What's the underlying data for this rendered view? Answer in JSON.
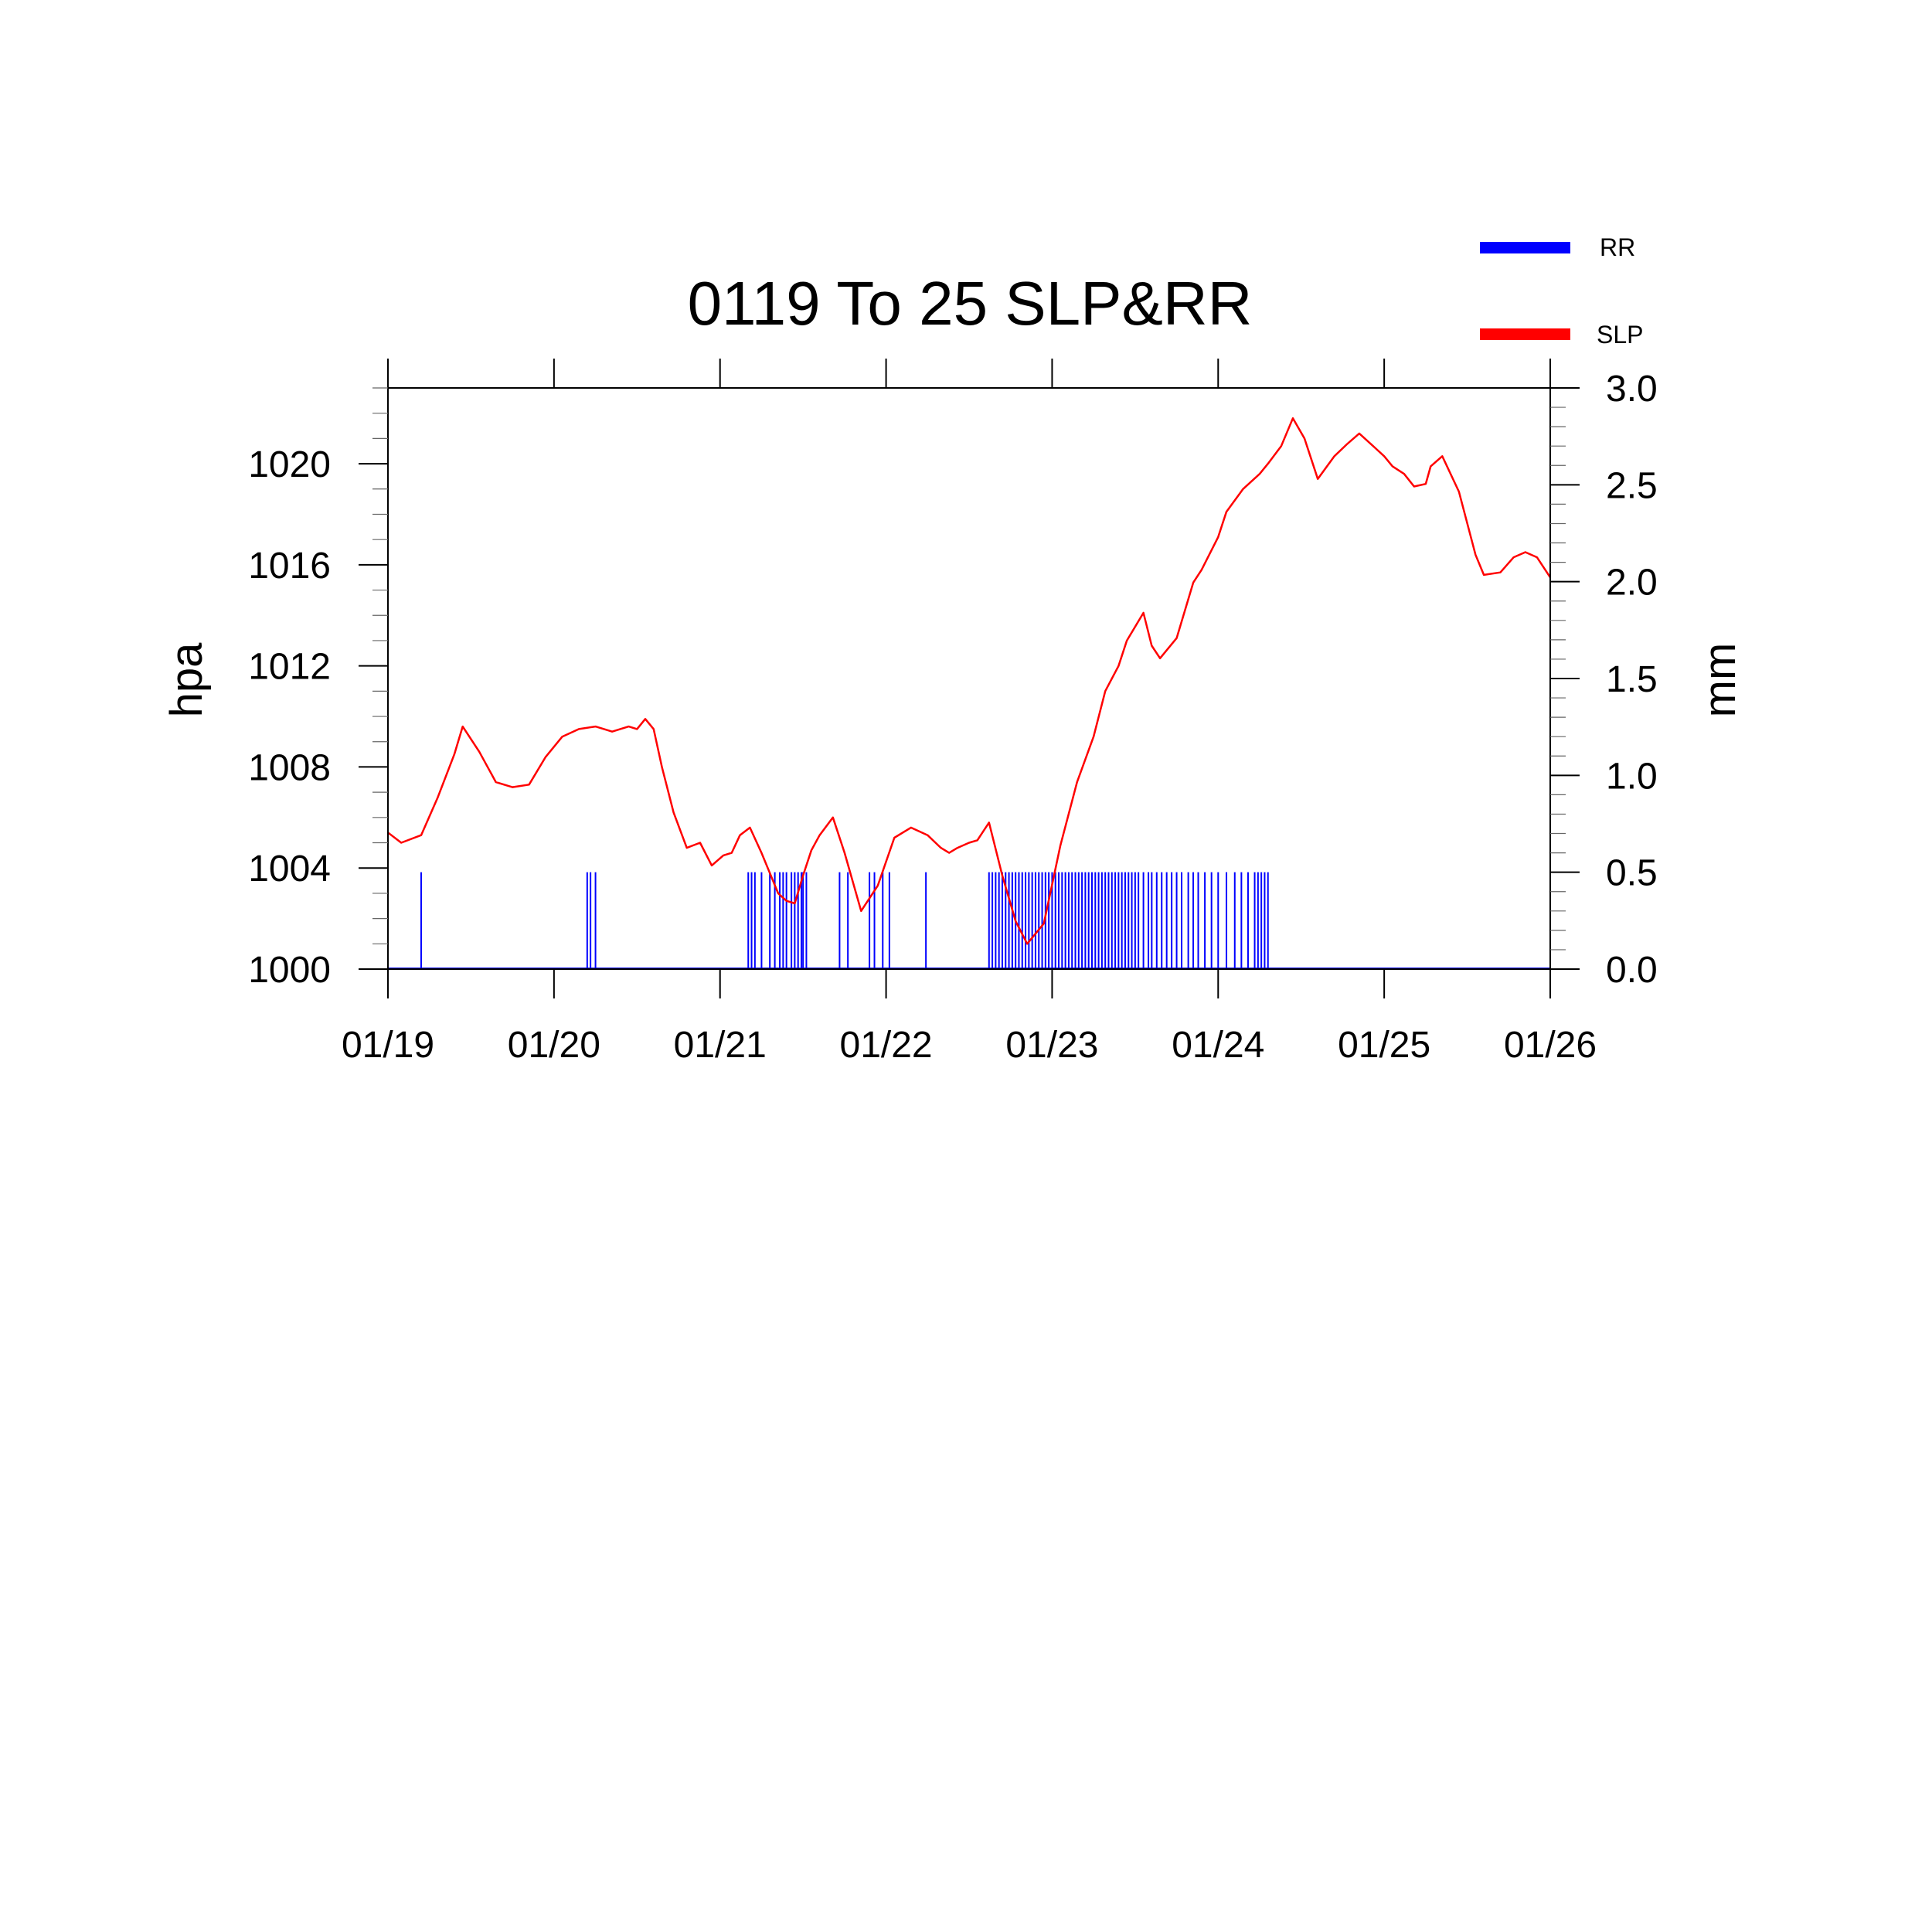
{
  "chart_data": {
    "type": "line",
    "title": "0119 To 25 SLP&RR",
    "xlabel": "",
    "ylabel_left": "hpa",
    "ylabel_right": "mm",
    "x_ticks": [
      "01/19",
      "01/20",
      "01/21",
      "01/22",
      "01/23",
      "01/24",
      "01/25",
      "01/26"
    ],
    "x_range_days": [
      0,
      7
    ],
    "y_left_range": [
      1000,
      1023
    ],
    "y_left_ticks": [
      "1000",
      "1004",
      "1008",
      "1012",
      "1016",
      "1020"
    ],
    "y_right_range": [
      0,
      3
    ],
    "y_right_ticks": [
      "0.0",
      "0.5",
      "1.0",
      "1.5",
      "2.0",
      "2.5",
      "3.0"
    ],
    "legend": {
      "position": "top-right",
      "entries": [
        {
          "name": "RR",
          "color": "#0000ff"
        },
        {
          "name": "SLP",
          "color": "#ff0000"
        }
      ]
    },
    "series": [
      {
        "name": "SLP",
        "axis": "left",
        "style": "line",
        "color": "#ff0000",
        "x": [
          0,
          0.08,
          0.2,
          0.3,
          0.4,
          0.45,
          0.55,
          0.65,
          0.75,
          0.85,
          0.95,
          1.05,
          1.15,
          1.25,
          1.35,
          1.45,
          1.5,
          1.55,
          1.6,
          1.65,
          1.72,
          1.8,
          1.88,
          1.95,
          2.02,
          2.07,
          2.12,
          2.18,
          2.25,
          2.3,
          2.35,
          2.4,
          2.45,
          2.5,
          2.55,
          2.6,
          2.68,
          2.75,
          2.85,
          2.95,
          3.05,
          3.15,
          3.25,
          3.33,
          3.38,
          3.43,
          3.5,
          3.55,
          3.62,
          3.7,
          3.78,
          3.85,
          3.95,
          4.05,
          4.15,
          4.25,
          4.32,
          4.4,
          4.45,
          4.55,
          4.6,
          4.65,
          4.75,
          4.85,
          4.9,
          5.0,
          5.05,
          5.15,
          5.25,
          5.3,
          5.38,
          5.45,
          5.52,
          5.6,
          5.7,
          5.78,
          5.85,
          5.95,
          6.0,
          6.05,
          6.12,
          6.18,
          6.25,
          6.28,
          6.35,
          6.45,
          6.55,
          6.6,
          6.7,
          6.78,
          6.85,
          6.92,
          7.0
        ],
        "y": [
          1005.4,
          1005.0,
          1005.3,
          1006.8,
          1008.5,
          1009.6,
          1008.6,
          1007.4,
          1007.2,
          1007.3,
          1008.4,
          1009.2,
          1009.5,
          1009.6,
          1009.4,
          1009.6,
          1009.5,
          1009.9,
          1009.5,
          1008.0,
          1006.2,
          1004.8,
          1005.0,
          1004.1,
          1004.5,
          1004.6,
          1005.3,
          1005.6,
          1004.6,
          1003.8,
          1003.0,
          1002.7,
          1002.6,
          1003.7,
          1004.7,
          1005.3,
          1006.0,
          1004.6,
          1002.3,
          1003.3,
          1005.2,
          1005.6,
          1005.3,
          1004.8,
          1004.6,
          1004.8,
          1005.0,
          1005.1,
          1005.8,
          1003.7,
          1001.9,
          1001.0,
          1001.8,
          1004.9,
          1007.4,
          1009.2,
          1011.0,
          1012.0,
          1013.0,
          1014.1,
          1012.8,
          1012.3,
          1013.1,
          1015.3,
          1015.8,
          1017.1,
          1018.1,
          1019.0,
          1019.6,
          1020.0,
          1020.7,
          1021.8,
          1021.0,
          1019.4,
          1020.3,
          1020.8,
          1021.2,
          1020.6,
          1020.3,
          1019.9,
          1019.6,
          1019.1,
          1019.2,
          1019.9,
          1020.3,
          1018.9,
          1016.4,
          1015.6,
          1015.7,
          1016.3,
          1016.5,
          1016.3,
          1015.5
        ]
      },
      {
        "name": "RR",
        "axis": "right",
        "style": "impulse",
        "color": "#0000ff",
        "x": [
          0.2,
          1.2,
          1.22,
          1.25,
          2.17,
          2.19,
          2.21,
          2.25,
          2.3,
          2.33,
          2.36,
          2.38,
          2.4,
          2.43,
          2.45,
          2.47,
          2.49,
          2.5,
          2.52,
          2.72,
          2.77,
          2.9,
          2.93,
          2.98,
          3.02,
          3.24,
          3.62,
          3.64,
          3.66,
          3.68,
          3.7,
          3.72,
          3.74,
          3.76,
          3.78,
          3.8,
          3.82,
          3.84,
          3.86,
          3.88,
          3.9,
          3.92,
          3.94,
          3.96,
          3.98,
          4.0,
          4.02,
          4.04,
          4.06,
          4.08,
          4.1,
          4.12,
          4.14,
          4.16,
          4.18,
          4.2,
          4.22,
          4.24,
          4.26,
          4.28,
          4.3,
          4.32,
          4.34,
          4.36,
          4.38,
          4.4,
          4.42,
          4.44,
          4.46,
          4.48,
          4.5,
          4.52,
          4.55,
          4.58,
          4.6,
          4.63,
          4.66,
          4.69,
          4.72,
          4.75,
          4.78,
          4.82,
          4.85,
          4.88,
          4.92,
          4.96,
          5.0,
          5.05,
          5.1,
          5.14,
          5.18,
          5.22,
          5.24,
          5.26,
          5.28,
          5.3
        ],
        "y": [
          0.5,
          0.5,
          0.5,
          0.5,
          0.5,
          0.5,
          0.5,
          0.5,
          0.5,
          0.5,
          0.5,
          0.5,
          0.5,
          0.5,
          0.5,
          0.5,
          0.5,
          0.5,
          0.5,
          0.5,
          0.5,
          0.5,
          0.5,
          0.5,
          0.5,
          0.5,
          0.5,
          0.5,
          0.5,
          0.5,
          0.5,
          0.5,
          0.5,
          0.5,
          0.5,
          0.5,
          0.5,
          0.5,
          0.5,
          0.5,
          0.5,
          0.5,
          0.5,
          0.5,
          0.5,
          0.5,
          0.5,
          0.5,
          0.5,
          0.5,
          0.5,
          0.5,
          0.5,
          0.5,
          0.5,
          0.5,
          0.5,
          0.5,
          0.5,
          0.5,
          0.5,
          0.5,
          0.5,
          0.5,
          0.5,
          0.5,
          0.5,
          0.5,
          0.5,
          0.5,
          0.5,
          0.5,
          0.5,
          0.5,
          0.5,
          0.5,
          0.5,
          0.5,
          0.5,
          0.5,
          0.5,
          0.5,
          0.5,
          0.5,
          0.5,
          0.5,
          0.5,
          0.5,
          0.5,
          0.5,
          0.5,
          0.5,
          0.5,
          0.5,
          0.5,
          0.5
        ]
      }
    ],
    "grid": false
  }
}
